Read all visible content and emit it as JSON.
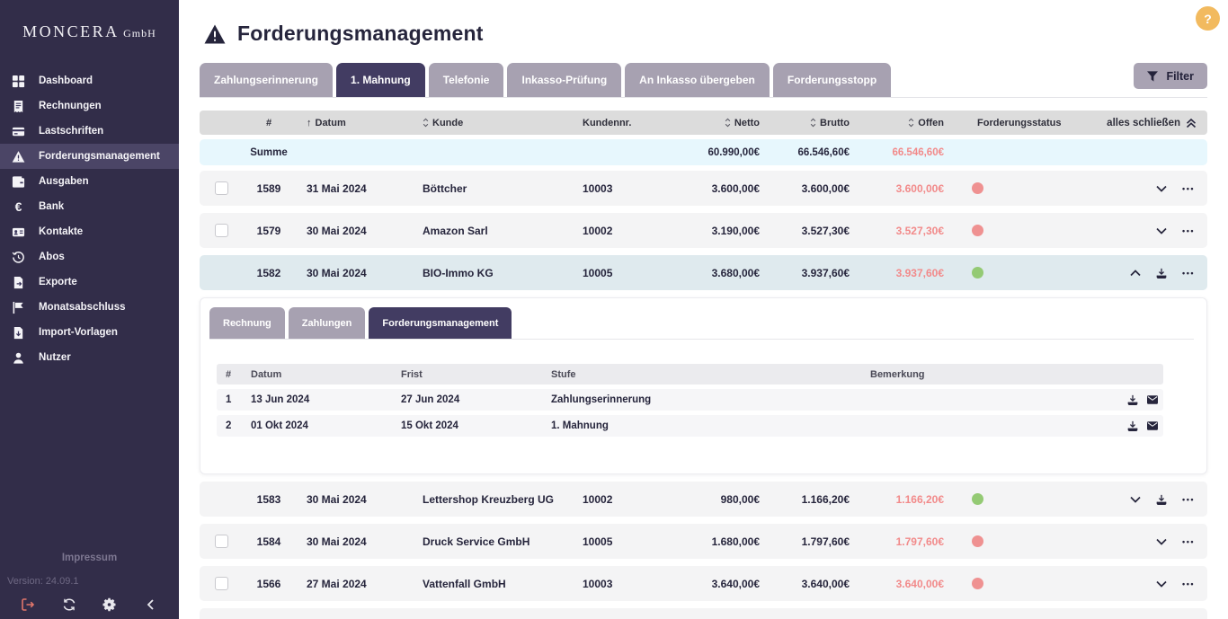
{
  "app": {
    "company": "MONCERA",
    "company_suffix": "GmbH",
    "help_label": "?"
  },
  "sidebar": {
    "items": [
      {
        "label": "Dashboard",
        "icon": "dashboard-icon",
        "active": false
      },
      {
        "label": "Rechnungen",
        "icon": "invoice-icon",
        "active": false
      },
      {
        "label": "Lastschriften",
        "icon": "card-icon",
        "active": false
      },
      {
        "label": "Forderungsmanagement",
        "icon": "warning-icon",
        "active": true
      },
      {
        "label": "Ausgaben",
        "icon": "wallet-icon",
        "active": false
      },
      {
        "label": "Bank",
        "icon": "euro-icon",
        "active": false
      },
      {
        "label": "Kontakte",
        "icon": "contact-card-icon",
        "active": false
      },
      {
        "label": "Abos",
        "icon": "history-icon",
        "active": false
      },
      {
        "label": "Exporte",
        "icon": "file-export-icon",
        "active": false
      },
      {
        "label": "Monatsabschluss",
        "icon": "flag-icon",
        "active": false
      },
      {
        "label": "Import-Vorlagen",
        "icon": "file-import-icon",
        "active": false
      },
      {
        "label": "Nutzer",
        "icon": "user-icon",
        "active": false
      }
    ],
    "impressum": "Impressum",
    "version": "Version: 24.09.1",
    "footer_icons": [
      {
        "icon": "logout-icon"
      },
      {
        "icon": "refresh-icon"
      },
      {
        "icon": "gear-icon"
      },
      {
        "icon": "chevron-left-icon"
      }
    ]
  },
  "header": {
    "title": "Forderungsmanagement",
    "title_icon": "warning-icon"
  },
  "tabs": [
    {
      "label": "Zahlungserinnerung",
      "active": false
    },
    {
      "label": "1. Mahnung",
      "active": true
    },
    {
      "label": "Telefonie",
      "active": false
    },
    {
      "label": "Inkasso-Prüfung",
      "active": false
    },
    {
      "label": "An Inkasso übergeben",
      "active": false
    },
    {
      "label": "Forderungsstopp",
      "active": false
    }
  ],
  "filter": {
    "label": "Filter",
    "icon": "funnel-icon"
  },
  "table": {
    "columns": [
      {
        "key": "num",
        "label": "#",
        "sort": "none"
      },
      {
        "key": "datum",
        "label": "Datum",
        "sort": "asc"
      },
      {
        "key": "kunde",
        "label": "Kunde",
        "sort": "both"
      },
      {
        "key": "kundennr",
        "label": "Kundennr.",
        "sort": "none"
      },
      {
        "key": "netto",
        "label": "Netto",
        "sort": "both"
      },
      {
        "key": "brutto",
        "label": "Brutto",
        "sort": "both"
      },
      {
        "key": "offen",
        "label": "Offen",
        "sort": "both"
      },
      {
        "key": "status",
        "label": "Forderungsstatus",
        "sort": "none"
      }
    ],
    "collapse_all_label": "alles schließen",
    "summe": {
      "label": "Summe",
      "netto": "60.990,00€",
      "brutto": "66.546,60€",
      "offen": "66.546,60€"
    },
    "rows": [
      {
        "num": "1589",
        "datum": "31 Mai 2024",
        "kunde": "Böttcher",
        "kundennr": "10003",
        "netto": "3.600,00€",
        "brutto": "3.600,00€",
        "offen": "3.600,00€",
        "status": "red",
        "checkbox": true,
        "expanded": false,
        "download": false
      },
      {
        "num": "1579",
        "datum": "30 Mai 2024",
        "kunde": "Amazon Sarl",
        "kundennr": "10002",
        "netto": "3.190,00€",
        "brutto": "3.527,30€",
        "offen": "3.527,30€",
        "status": "red",
        "checkbox": true,
        "expanded": false,
        "download": false
      },
      {
        "num": "1582",
        "datum": "30 Mai 2024",
        "kunde": "BIO-Immo KG",
        "kundennr": "10005",
        "netto": "3.680,00€",
        "brutto": "3.937,60€",
        "offen": "3.937,60€",
        "status": "green",
        "checkbox": false,
        "expanded": true,
        "download": true
      },
      {
        "num": "1583",
        "datum": "30 Mai 2024",
        "kunde": "Lettershop Kreuzberg UG",
        "kundennr": "10002",
        "netto": "980,00€",
        "brutto": "1.166,20€",
        "offen": "1.166,20€",
        "status": "green",
        "checkbox": false,
        "expanded": false,
        "download": true
      },
      {
        "num": "1584",
        "datum": "30 Mai 2024",
        "kunde": "Druck Service GmbH",
        "kundennr": "10005",
        "netto": "1.680,00€",
        "brutto": "1.797,60€",
        "offen": "1.797,60€",
        "status": "red",
        "checkbox": true,
        "expanded": false,
        "download": false
      },
      {
        "num": "1566",
        "datum": "27 Mai 2024",
        "kunde": "Vattenfall GmbH",
        "kundennr": "10003",
        "netto": "3.640,00€",
        "brutto": "3.640,00€",
        "offen": "3.640,00€",
        "status": "red",
        "checkbox": true,
        "expanded": false,
        "download": false
      }
    ]
  },
  "detail": {
    "tabs": [
      {
        "label": "Rechnung",
        "active": false
      },
      {
        "label": "Zahlungen",
        "active": false
      },
      {
        "label": "Forderungsmanagement",
        "active": true
      }
    ],
    "columns": [
      "#",
      "Datum",
      "Frist",
      "Stufe",
      "Bemerkung"
    ],
    "rows": [
      {
        "num": "1",
        "datum": "13 Jun 2024",
        "frist": "27 Jun 2024",
        "stufe": "Zahlungserinnerung",
        "bemerkung": ""
      },
      {
        "num": "2",
        "datum": "01 Okt 2024",
        "frist": "15 Okt 2024",
        "stufe": "1. Mahnung",
        "bemerkung": ""
      }
    ],
    "row_icons": [
      "download-icon",
      "envelope-icon"
    ]
  },
  "colors": {
    "sidebar_bg": "#322d49",
    "sidebar_active_bg": "#4b4566",
    "tab_inactive": "#a7a1b1",
    "tab_active": "#423c62",
    "table_header_bg": "#dcdcdc",
    "summe_bg": "#e7f7fd",
    "row_bg": "#f4f4f5",
    "expanded_row_bg": "#dfeaee",
    "open_amount": "#f28a8a",
    "status_red": "#ef9191",
    "status_green": "#94ca74",
    "help_bg": "#f2ba5f",
    "logout_red": "#e2766b"
  }
}
